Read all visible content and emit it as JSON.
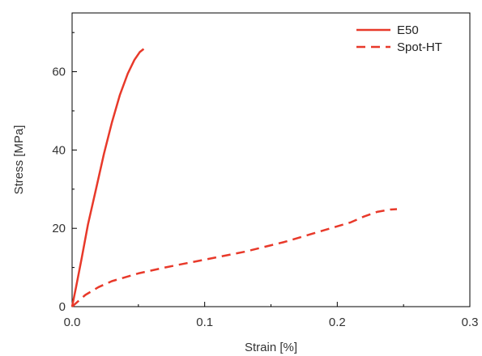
{
  "chart_data": {
    "type": "line",
    "title": "",
    "xlabel": "Strain [%]",
    "ylabel": "Stress [MPa]",
    "xlim": [
      0,
      0.3
    ],
    "ylim": [
      0,
      75
    ],
    "x_ticks": [
      0.0,
      0.1,
      0.2,
      0.3
    ],
    "x_tick_labels": [
      "0.0",
      "0.1",
      "0.2",
      "0.3"
    ],
    "y_ticks": [
      0,
      20,
      40,
      60
    ],
    "y_tick_labels": [
      "0",
      "20",
      "40",
      "60"
    ],
    "grid": false,
    "legend_position": "top-right",
    "series": [
      {
        "name": "E50",
        "style": "solid",
        "color": "#e8392a",
        "x": [
          0.0,
          0.003,
          0.007,
          0.012,
          0.018,
          0.024,
          0.03,
          0.036,
          0.042,
          0.047,
          0.051,
          0.054
        ],
        "y": [
          0.0,
          5.0,
          12.0,
          21.0,
          30.0,
          39.0,
          47.0,
          54.0,
          59.5,
          63.0,
          65.0,
          65.8
        ]
      },
      {
        "name": "Spot-HT",
        "style": "dashed",
        "color": "#e8392a",
        "x": [
          0.0,
          0.005,
          0.01,
          0.02,
          0.03,
          0.05,
          0.07,
          0.1,
          0.13,
          0.16,
          0.19,
          0.21,
          0.22,
          0.23,
          0.24,
          0.245
        ],
        "y": [
          0.0,
          1.5,
          3.0,
          5.0,
          6.5,
          8.5,
          10.0,
          12.0,
          14.0,
          16.5,
          19.5,
          21.5,
          23.0,
          24.2,
          24.8,
          24.9
        ]
      }
    ]
  }
}
